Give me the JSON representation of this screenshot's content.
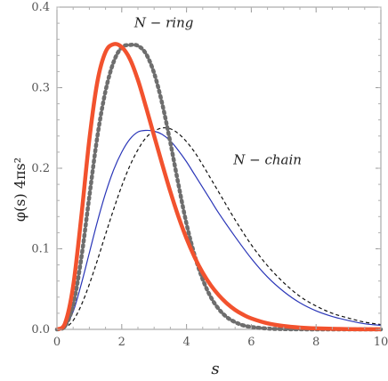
{
  "chart_data": {
    "type": "line",
    "xlabel": "s",
    "ylabel": "φ(s) 4πs²",
    "xlim": [
      0,
      10
    ],
    "ylim": [
      0,
      0.4
    ],
    "x_ticks": [
      0,
      2,
      4,
      6,
      8,
      10
    ],
    "y_ticks": [
      0.0,
      0.1,
      0.2,
      0.3,
      0.4
    ],
    "x_tick_labels": [
      "0",
      "2",
      "4",
      "6",
      "8",
      "10"
    ],
    "y_tick_labels": [
      "0.0",
      "0.1",
      "0.2",
      "0.3",
      "0.4"
    ],
    "grid": false,
    "annotations": [
      {
        "text": "N − ring",
        "x": 3.3,
        "y": 0.375
      },
      {
        "text": "N − chain",
        "x": 6.5,
        "y": 0.205
      }
    ],
    "series": [
      {
        "style": "thick solid",
        "color": "#f2522e",
        "x": [
          0,
          0.25,
          0.5,
          0.75,
          1.0,
          1.25,
          1.5,
          1.75,
          2.0,
          2.25,
          2.5,
          2.75,
          3.0,
          3.25,
          3.5,
          3.75,
          4.0,
          4.25,
          4.5,
          4.75,
          5.0,
          5.25,
          5.5,
          5.75,
          6.0,
          6.5,
          7.0,
          7.5,
          8.0,
          9.0,
          10.0
        ],
        "y": [
          0,
          0.0076,
          0.0536,
          0.1393,
          0.2356,
          0.3078,
          0.3443,
          0.354,
          0.3504,
          0.3358,
          0.3095,
          0.2758,
          0.2402,
          0.205,
          0.171,
          0.14,
          0.1128,
          0.0896,
          0.0703,
          0.0547,
          0.0422,
          0.0321,
          0.0242,
          0.0182,
          0.0136,
          0.0075,
          0.0041,
          0.0022,
          0.0012,
          0.0003,
          0.0001
        ]
      },
      {
        "style": "thick dotted",
        "color": "#6e6e6e",
        "x": [
          0,
          0.25,
          0.5,
          0.75,
          1.0,
          1.25,
          1.5,
          1.75,
          2.0,
          2.25,
          2.5,
          2.75,
          3.0,
          3.25,
          3.5,
          3.75,
          4.0,
          4.25,
          4.5,
          4.75,
          5.0,
          5.25,
          5.5,
          5.75,
          6.0,
          6.5,
          7.0,
          7.5,
          8.0,
          9.0,
          10.0
        ],
        "y": [
          0,
          0.004,
          0.03,
          0.088,
          0.165,
          0.24,
          0.296,
          0.332,
          0.35,
          0.353,
          0.352,
          0.342,
          0.318,
          0.28,
          0.232,
          0.18,
          0.131,
          0.092,
          0.062,
          0.04,
          0.025,
          0.015,
          0.009,
          0.005,
          0.003,
          0.001,
          0.0003,
          0.0001,
          0,
          0,
          0
        ]
      },
      {
        "style": "thin solid",
        "color": "#2a36b8",
        "x": [
          0,
          0.25,
          0.5,
          0.75,
          1.0,
          1.25,
          1.5,
          1.75,
          2.0,
          2.25,
          2.5,
          2.75,
          3.0,
          3.25,
          3.5,
          3.75,
          4.0,
          4.25,
          4.5,
          4.75,
          5.0,
          5.5,
          6.0,
          6.5,
          7.0,
          7.5,
          8.0,
          8.5,
          9.0,
          9.5,
          10.0
        ],
        "y": [
          0,
          0.004,
          0.022,
          0.056,
          0.095,
          0.134,
          0.169,
          0.198,
          0.22,
          0.236,
          0.245,
          0.247,
          0.246,
          0.242,
          0.234,
          0.222,
          0.208,
          0.192,
          0.176,
          0.16,
          0.144,
          0.115,
          0.088,
          0.065,
          0.047,
          0.033,
          0.023,
          0.016,
          0.011,
          0.007,
          0.005
        ]
      },
      {
        "style": "thin dashed",
        "color": "#111111",
        "x": [
          0,
          0.25,
          0.5,
          0.75,
          1.0,
          1.25,
          1.5,
          1.75,
          2.0,
          2.25,
          2.5,
          2.75,
          3.0,
          3.25,
          3.5,
          3.75,
          4.0,
          4.25,
          4.5,
          4.75,
          5.0,
          5.5,
          6.0,
          6.5,
          7.0,
          7.5,
          8.0,
          8.5,
          9.0,
          9.5,
          10.0
        ],
        "y": [
          0,
          0.002,
          0.011,
          0.03,
          0.056,
          0.086,
          0.118,
          0.149,
          0.178,
          0.203,
          0.223,
          0.238,
          0.246,
          0.25,
          0.249,
          0.243,
          0.233,
          0.22,
          0.204,
          0.187,
          0.17,
          0.136,
          0.105,
          0.079,
          0.058,
          0.041,
          0.029,
          0.02,
          0.014,
          0.009,
          0.006
        ]
      }
    ]
  }
}
